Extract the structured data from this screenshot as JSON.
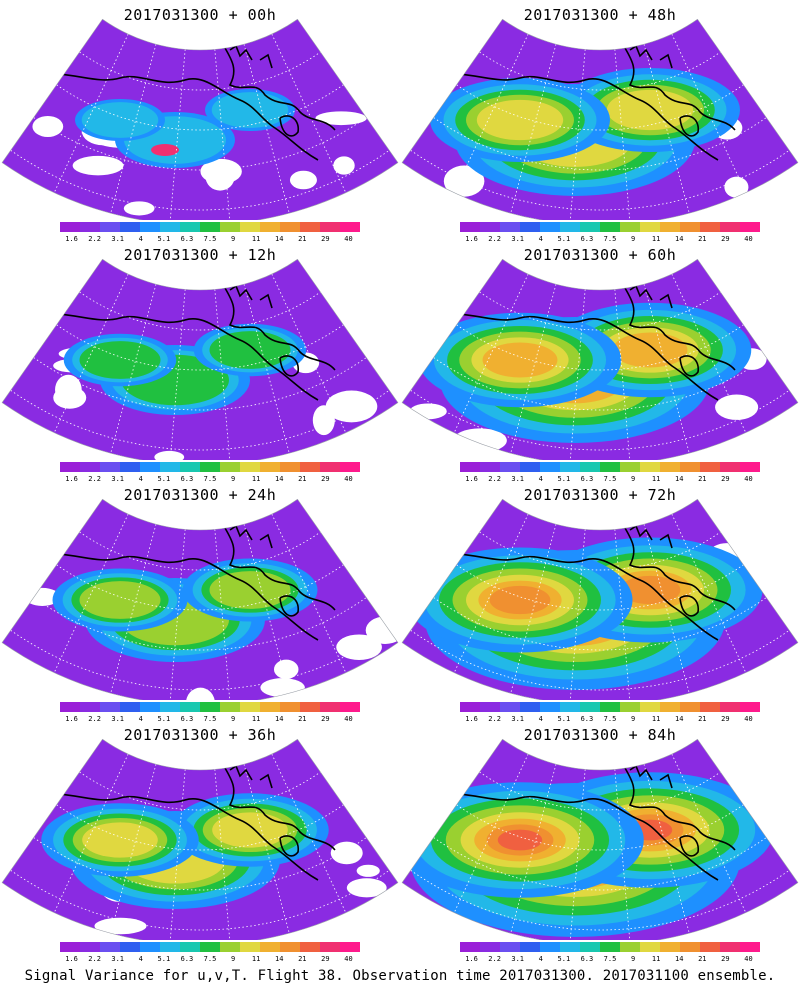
{
  "panels": [
    {
      "title": "2017031300 + 00h",
      "lead_hours": 0
    },
    {
      "title": "2017031300 + 48h",
      "lead_hours": 48
    },
    {
      "title": "2017031300 + 12h",
      "lead_hours": 12
    },
    {
      "title": "2017031300 + 60h",
      "lead_hours": 60
    },
    {
      "title": "2017031300 + 24h",
      "lead_hours": 24
    },
    {
      "title": "2017031300 + 72h",
      "lead_hours": 72
    },
    {
      "title": "2017031300 + 36h",
      "lead_hours": 36
    },
    {
      "title": "2017031300 + 84h",
      "lead_hours": 84
    }
  ],
  "colorbar": {
    "labels": [
      "1.6",
      "2.2",
      "3.1",
      "4",
      "5.1",
      "6.3",
      "7.5",
      "9",
      "11",
      "14",
      "21",
      "29",
      "40"
    ],
    "colors": [
      "#9a1fd8",
      "#8a2be2",
      "#6a4ff0",
      "#2f5ff0",
      "#1e90ff",
      "#22b8e8",
      "#18c8b0",
      "#20c040",
      "#9ad030",
      "#e0d840",
      "#f0b030",
      "#f09030",
      "#f06040",
      "#f03070",
      "#ff1a8c"
    ]
  },
  "caption": "Signal Variance for u,v,T. Flight 38. Observation time 2017031300. 2017031100 ensemble."
}
